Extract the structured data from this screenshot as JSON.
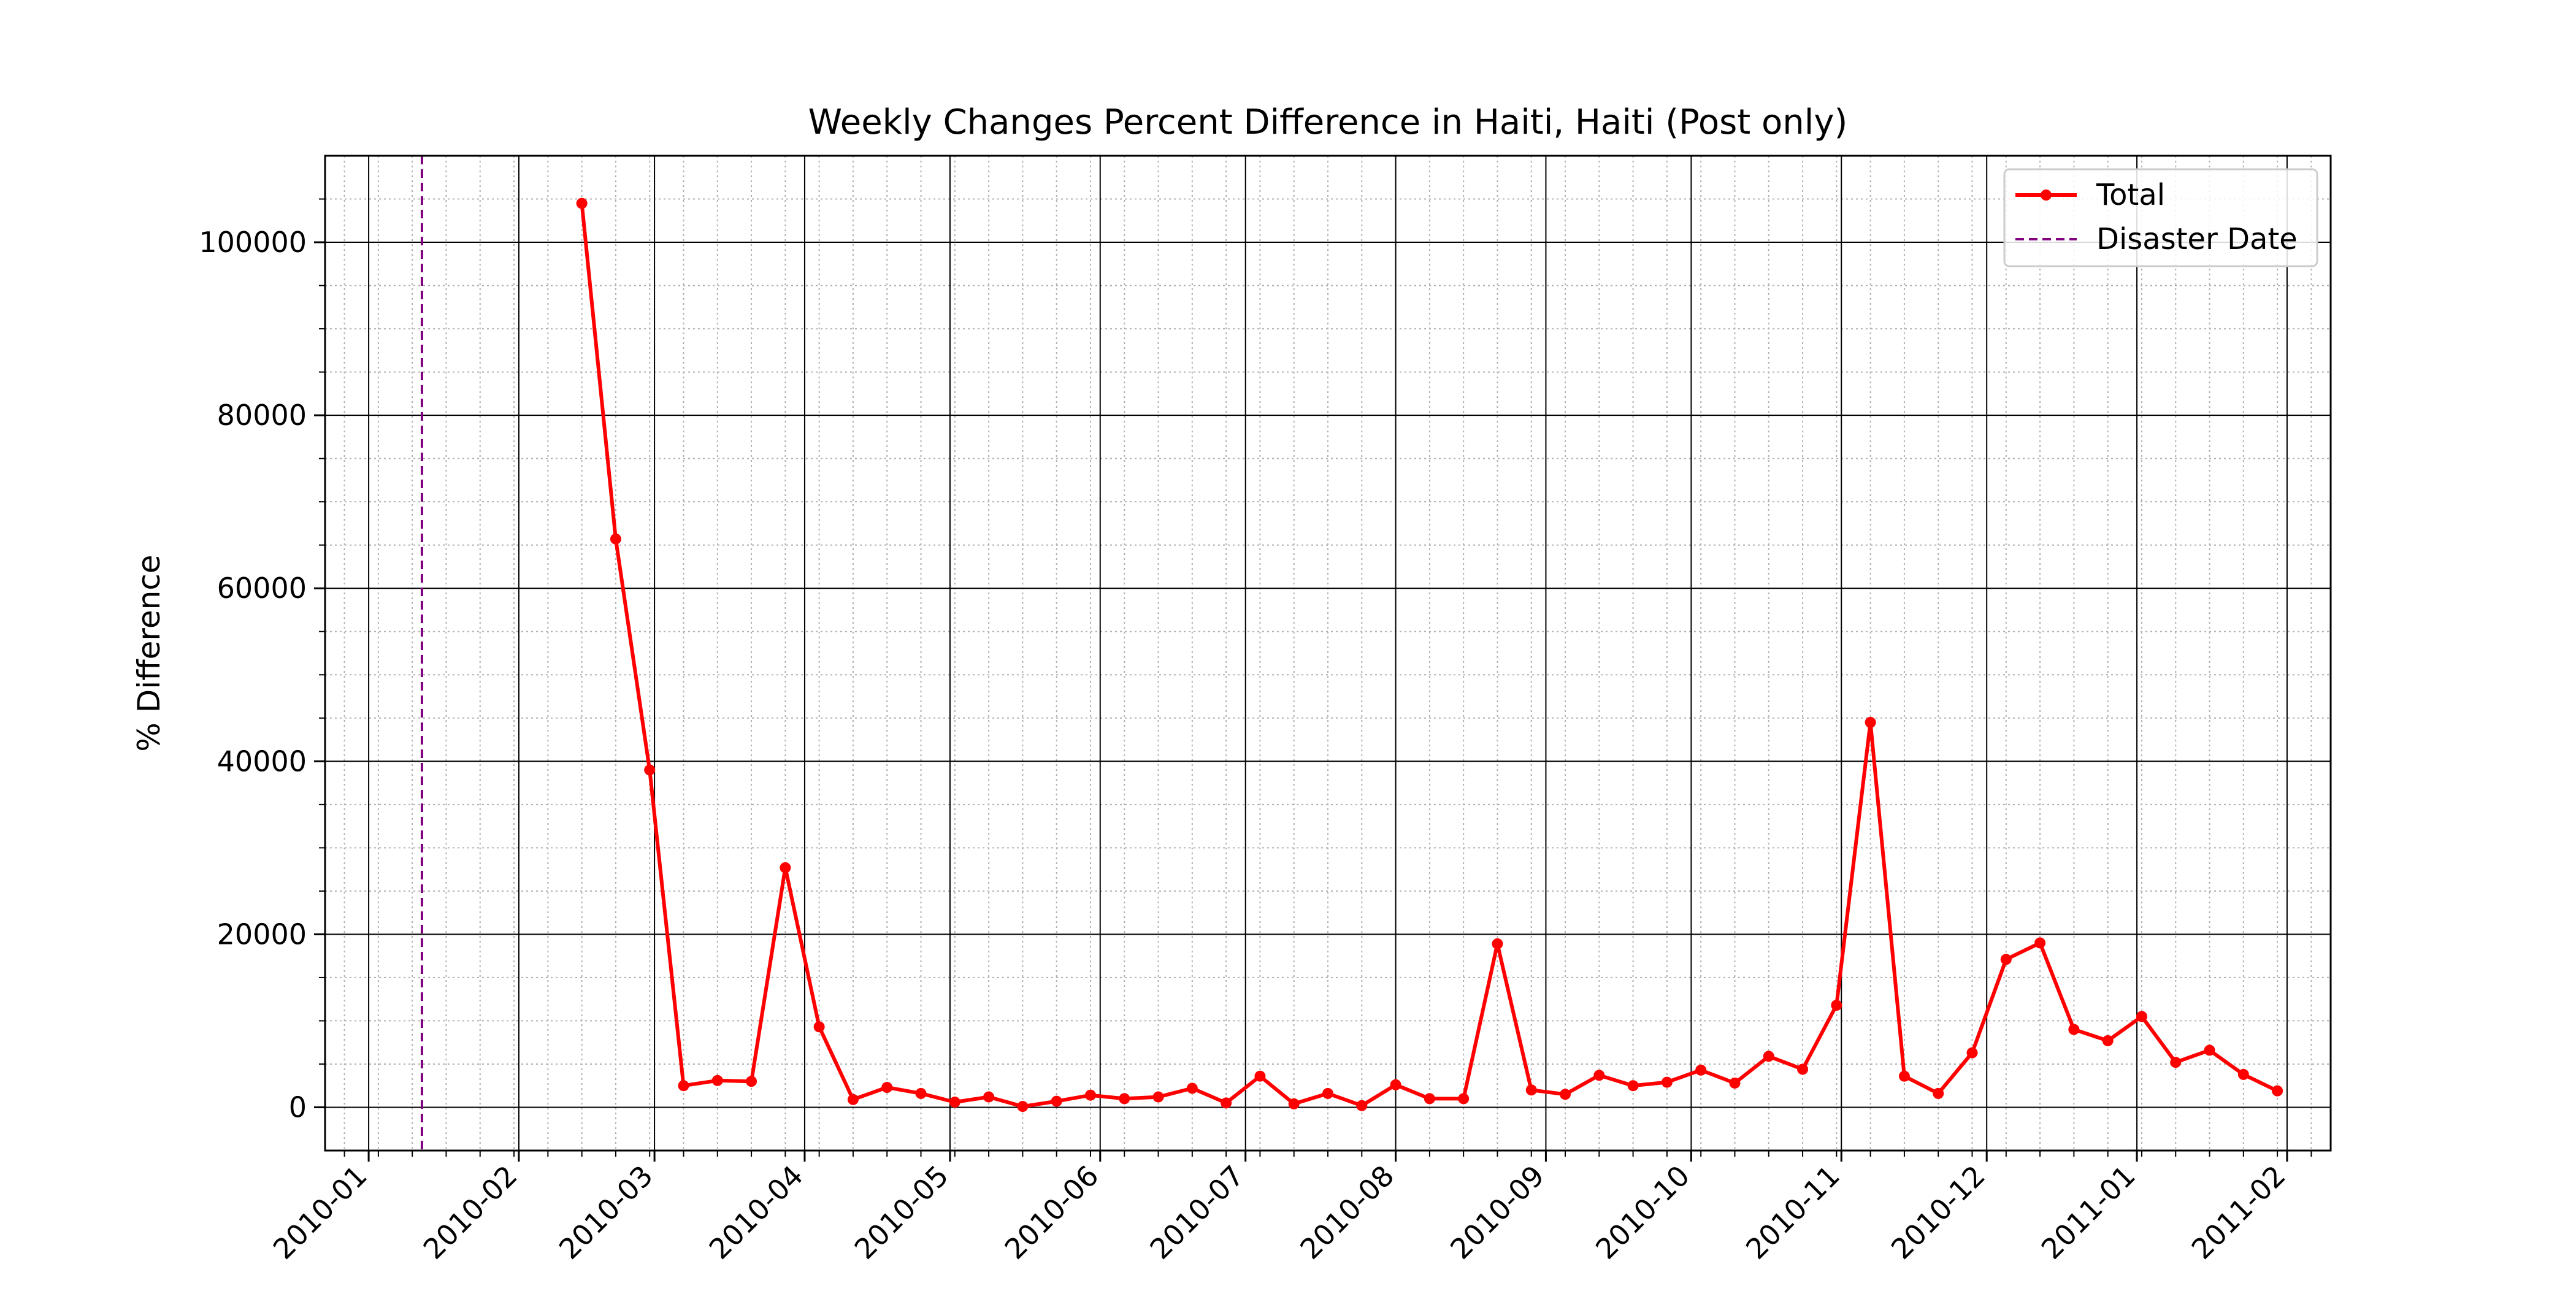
{
  "chart_data": {
    "type": "line",
    "title": "Weekly Changes Percent Difference in Haiti, Haiti (Post only)",
    "xlabel": "",
    "ylabel": "% Difference",
    "xlim": [
      "2009-12-23",
      "2011-02-10"
    ],
    "ylim": [
      -5000,
      110000
    ],
    "x_ticks": [
      "2010-01-01",
      "2010-02-01",
      "2010-03-01",
      "2010-04-01",
      "2010-05-01",
      "2010-06-01",
      "2010-07-01",
      "2010-08-01",
      "2010-09-01",
      "2010-10-01",
      "2010-11-01",
      "2010-12-01",
      "2011-01-01",
      "2011-02-01"
    ],
    "x_tick_labels": [
      "2010-01",
      "2010-02",
      "2010-03",
      "2010-04",
      "2010-05",
      "2010-06",
      "2010-07",
      "2010-08",
      "2010-09",
      "2010-10",
      "2010-11",
      "2010-12",
      "2011-01",
      "2011-02"
    ],
    "y_ticks": [
      0,
      20000,
      40000,
      60000,
      80000,
      100000
    ],
    "y_tick_labels": [
      "0",
      "20000",
      "40000",
      "60000",
      "80000",
      "100000"
    ],
    "grid": true,
    "minor_grid": true,
    "legend_position": "top-right",
    "disaster_date": "2010-01-12",
    "series": [
      {
        "name": "Total",
        "color": "#ff0000",
        "marker": "circle",
        "x": [
          "2010-02-14",
          "2010-02-21",
          "2010-02-28",
          "2010-03-07",
          "2010-03-14",
          "2010-03-21",
          "2010-03-28",
          "2010-04-04",
          "2010-04-11",
          "2010-04-18",
          "2010-04-25",
          "2010-05-02",
          "2010-05-09",
          "2010-05-16",
          "2010-05-23",
          "2010-05-30",
          "2010-06-06",
          "2010-06-13",
          "2010-06-20",
          "2010-06-27",
          "2010-07-04",
          "2010-07-11",
          "2010-07-18",
          "2010-07-25",
          "2010-08-01",
          "2010-08-08",
          "2010-08-15",
          "2010-08-22",
          "2010-08-29",
          "2010-09-05",
          "2010-09-12",
          "2010-09-19",
          "2010-09-26",
          "2010-10-03",
          "2010-10-10",
          "2010-10-17",
          "2010-10-24",
          "2010-10-31",
          "2010-11-07",
          "2010-11-14",
          "2010-11-21",
          "2010-11-28",
          "2010-12-05",
          "2010-12-12",
          "2010-12-19",
          "2010-12-26",
          "2011-01-02",
          "2011-01-09",
          "2011-01-16",
          "2011-01-23",
          "2011-01-30"
        ],
        "values": [
          104500,
          65700,
          39000,
          2500,
          3100,
          3000,
          27700,
          9300,
          900,
          2300,
          1600,
          600,
          1200,
          100,
          700,
          1400,
          1000,
          1200,
          2200,
          500,
          3600,
          400,
          1600,
          200,
          2600,
          1000,
          1000,
          18900,
          2000,
          1500,
          3700,
          2500,
          2900,
          4300,
          2800,
          5900,
          4400,
          11800,
          44500,
          3600,
          1600,
          6300,
          17100,
          19000,
          9000,
          7700,
          10500,
          5200,
          6600,
          3800,
          1900
        ]
      },
      {
        "name": "Disaster Date",
        "color": "#800080",
        "style": "dashed"
      }
    ]
  }
}
